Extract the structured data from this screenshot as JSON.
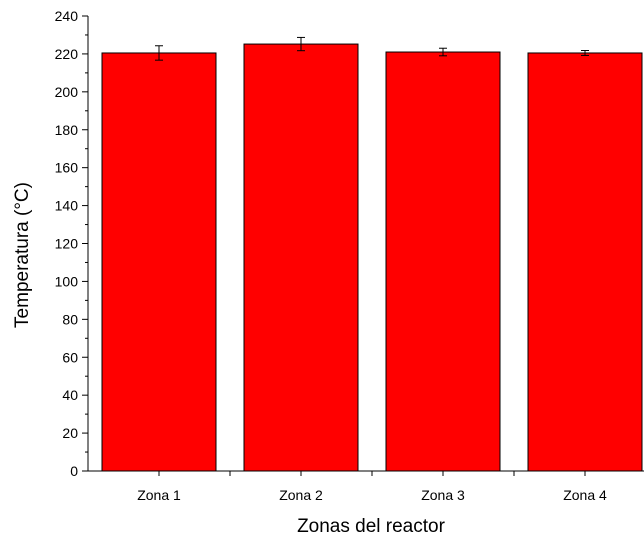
{
  "chart_data": {
    "type": "bar",
    "title": "",
    "xlabel": "Zonas del reactor",
    "ylabel": "Temperatura (°C)",
    "categories": [
      "Zona 1",
      "Zona 2",
      "Zona 3",
      "Zona 4"
    ],
    "values": [
      220.5,
      225.2,
      221.0,
      220.5
    ],
    "errors": [
      3.8,
      3.5,
      2.0,
      1.3
    ],
    "ylim": [
      0,
      240
    ],
    "yticks": [
      0,
      20,
      40,
      60,
      80,
      100,
      120,
      140,
      160,
      180,
      200,
      220,
      240
    ],
    "grid": false,
    "bar_color": "#ff0000",
    "edge_color": "#000000"
  }
}
